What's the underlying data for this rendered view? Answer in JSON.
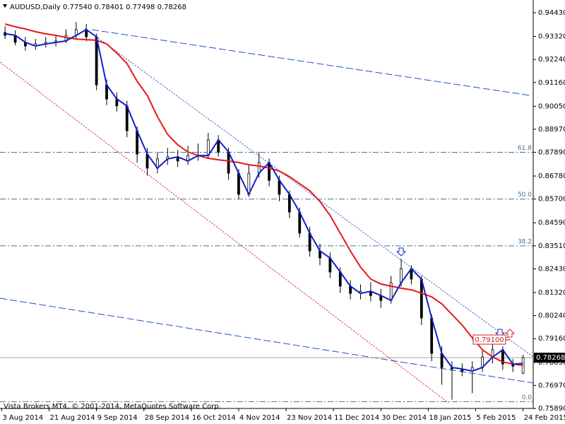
{
  "chart_data": {
    "type": "candlestick",
    "title": "AUDUSD,Daily",
    "ohlc_header": "0.77540 0.78401 0.77498 0.78268",
    "footer": "Vista Brokers MT4, © 2001-2014, MetaQuotes Software Corp.",
    "x": [
      1,
      4,
      7,
      10,
      13,
      16,
      19,
      22,
      25,
      28,
      31,
      34,
      37,
      40,
      43,
      46,
      49,
      52,
      55,
      58,
      61,
      64,
      67,
      70,
      73,
      76,
      79,
      82,
      85,
      88,
      91,
      94,
      97,
      100,
      103,
      106,
      109,
      112,
      115,
      118,
      121,
      124,
      127,
      130,
      133,
      136,
      139,
      142,
      145,
      148,
      151,
      154
    ],
    "open": [
      0.935,
      0.9337,
      0.9304,
      0.9287,
      0.9297,
      0.9304,
      0.9311,
      0.9337,
      0.9364,
      0.933,
      0.9105,
      0.9039,
      0.9006,
      0.889,
      0.8781,
      0.8715,
      0.8758,
      0.8768,
      0.8748,
      0.8774,
      0.8774,
      0.8847,
      0.8791,
      0.8691,
      0.8592,
      0.8691,
      0.8741,
      0.8658,
      0.8592,
      0.8509,
      0.841,
      0.8327,
      0.8294,
      0.8228,
      0.8162,
      0.8128,
      0.8138,
      0.8118,
      0.8095,
      0.8178,
      0.8244,
      0.8195,
      0.8013,
      0.7847,
      0.7781,
      0.7774,
      0.7764,
      0.7781,
      0.783,
      0.7864,
      0.7797,
      0.7754
    ],
    "high": [
      0.938,
      0.936,
      0.933,
      0.932,
      0.933,
      0.934,
      0.9365,
      0.94,
      0.939,
      0.9345,
      0.913,
      0.907,
      0.903,
      0.891,
      0.881,
      0.879,
      0.881,
      0.88,
      0.882,
      0.883,
      0.888,
      0.887,
      0.881,
      0.871,
      0.873,
      0.879,
      0.876,
      0.868,
      0.861,
      0.853,
      0.844,
      0.836,
      0.832,
      0.825,
      0.819,
      0.817,
      0.818,
      0.815,
      0.821,
      0.829,
      0.826,
      0.821,
      0.803,
      0.788,
      0.781,
      0.78,
      0.781,
      0.786,
      0.791,
      0.788,
      0.782,
      0.784
    ],
    "low": [
      0.932,
      0.929,
      0.9265,
      0.927,
      0.928,
      0.9285,
      0.93,
      0.932,
      0.931,
      0.908,
      0.901,
      0.898,
      0.886,
      0.874,
      0.868,
      0.869,
      0.873,
      0.872,
      0.873,
      0.875,
      0.876,
      0.877,
      0.866,
      0.857,
      0.858,
      0.867,
      0.863,
      0.856,
      0.848,
      0.839,
      0.83,
      0.826,
      0.82,
      0.813,
      0.81,
      0.81,
      0.809,
      0.806,
      0.808,
      0.816,
      0.817,
      0.798,
      0.781,
      0.77,
      0.763,
      0.774,
      0.766,
      0.776,
      0.78,
      0.777,
      0.776,
      0.775
    ],
    "close": [
      0.9337,
      0.9304,
      0.9287,
      0.9297,
      0.9304,
      0.9311,
      0.9337,
      0.9364,
      0.933,
      0.9105,
      0.9039,
      0.9006,
      0.889,
      0.8781,
      0.8715,
      0.8758,
      0.8768,
      0.8748,
      0.8774,
      0.8774,
      0.8847,
      0.8791,
      0.8691,
      0.8592,
      0.8691,
      0.8741,
      0.8658,
      0.8592,
      0.8509,
      0.841,
      0.8327,
      0.8294,
      0.8228,
      0.8162,
      0.8128,
      0.8138,
      0.8118,
      0.8095,
      0.8178,
      0.8244,
      0.8195,
      0.8013,
      0.7847,
      0.7781,
      0.7774,
      0.7764,
      0.7781,
      0.783,
      0.7864,
      0.7797,
      0.7787,
      0.7827
    ],
    "overlays": [
      {
        "color": "#e81818",
        "values": [
          0.939,
          0.9377,
          0.9367,
          0.9354,
          0.9344,
          0.9337,
          0.9327,
          0.932,
          0.9317,
          0.9314,
          0.9297,
          0.9254,
          0.9205,
          0.9122,
          0.9056,
          0.8956,
          0.8873,
          0.8824,
          0.8791,
          0.8774,
          0.8761,
          0.8754,
          0.8748,
          0.8741,
          0.8731,
          0.8725,
          0.8715,
          0.8701,
          0.8675,
          0.8642,
          0.8609,
          0.8559,
          0.8493,
          0.841,
          0.8327,
          0.8251,
          0.8195,
          0.8172,
          0.8162,
          0.8152,
          0.8145,
          0.8129,
          0.8112,
          0.8079,
          0.8029,
          0.798,
          0.792,
          0.7864,
          0.783,
          0.7807,
          0.7797,
          0.7791
        ]
      },
      {
        "color": "#1020c8",
        "values": [
          0.9345,
          0.9337,
          0.9304,
          0.9287,
          0.9297,
          0.9304,
          0.9311,
          0.9337,
          0.9364,
          0.933,
          0.9105,
          0.9039,
          0.9006,
          0.889,
          0.8781,
          0.8715,
          0.8758,
          0.8768,
          0.8748,
          0.8774,
          0.8774,
          0.8847,
          0.8791,
          0.8691,
          0.8592,
          0.8691,
          0.8741,
          0.8658,
          0.8592,
          0.8509,
          0.841,
          0.8327,
          0.8294,
          0.8228,
          0.8162,
          0.8128,
          0.8138,
          0.8118,
          0.8095,
          0.8178,
          0.8244,
          0.8195,
          0.8013,
          0.7847,
          0.7781,
          0.7774,
          0.7764,
          0.7781,
          0.783,
          0.7864,
          0.7797,
          0.78
        ]
      }
    ],
    "levels": [
      {
        "value": 0.8789,
        "label": "61.8"
      },
      {
        "value": 0.857,
        "label": "50.0"
      },
      {
        "value": 0.8351,
        "label": "38.2"
      },
      {
        "value": 0.7621,
        "label": "0.0"
      }
    ],
    "current_price": 0.78268,
    "price_marker": {
      "value": 0.791,
      "label": "0.79100"
    },
    "xlim": [
      -0.5,
      157
    ],
    "xticks": [
      {
        "value": 0,
        "label": "3 Aug 2014"
      },
      {
        "value": 14,
        "label": "21 Aug 2014"
      },
      {
        "value": 28,
        "label": "9 Sep 2014"
      },
      {
        "value": 42,
        "label": "28 Sep 2014"
      },
      {
        "value": 56,
        "label": "16 Oct 2014"
      },
      {
        "value": 70,
        "label": "4 Nov 2014"
      },
      {
        "value": 84,
        "label": "23 Nov 2014"
      },
      {
        "value": 98,
        "label": "11 Dec 2014"
      },
      {
        "value": 112,
        "label": "30 Dec 2014"
      },
      {
        "value": 126,
        "label": "18 Jan 2015"
      },
      {
        "value": 140,
        "label": "5 Feb 2015"
      },
      {
        "value": 154,
        "label": "24 Feb 2015"
      }
    ],
    "ylim": [
      0.7589,
      0.9443
    ],
    "yticks": [
      {
        "value": 0.9443,
        "label": "0.94430"
      },
      {
        "value": 0.9332,
        "label": "0.93320"
      },
      {
        "value": 0.9224,
        "label": "0.92240"
      },
      {
        "value": 0.9116,
        "label": "0.91160"
      },
      {
        "value": 0.9005,
        "label": "0.90050"
      },
      {
        "value": 0.8897,
        "label": "0.88970"
      },
      {
        "value": 0.8789,
        "label": "0.87890"
      },
      {
        "value": 0.8678,
        "label": "0.86780"
      },
      {
        "value": 0.857,
        "label": "0.85700"
      },
      {
        "value": 0.8459,
        "label": "0.84590"
      },
      {
        "value": 0.8351,
        "label": "0.83510"
      },
      {
        "value": 0.8243,
        "label": "0.82430"
      },
      {
        "value": 0.8132,
        "label": "0.81320"
      },
      {
        "value": 0.8024,
        "label": "0.80240"
      },
      {
        "value": 0.7916,
        "label": "0.79160"
      },
      {
        "value": 0.7805,
        "label": "0.78050"
      },
      {
        "value": 0.7697,
        "label": "0.76970"
      },
      {
        "value": 0.7589,
        "label": "0.75890"
      }
    ],
    "up_color": "#ffffff",
    "down_color": "#000000"
  }
}
